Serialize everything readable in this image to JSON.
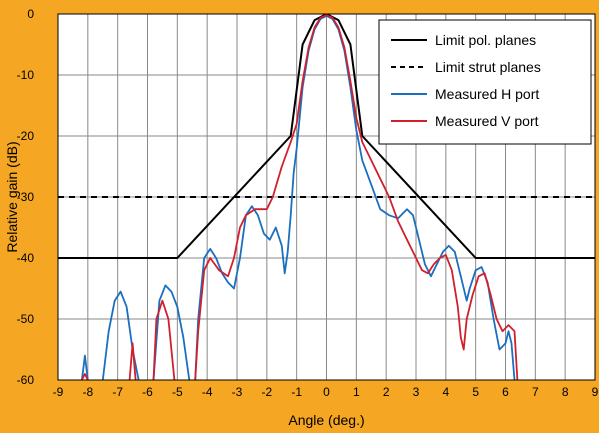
{
  "chart_data": {
    "type": "line",
    "xlabel": "Angle (deg.)",
    "ylabel": "Relative gain (dB)",
    "xlim": [
      -9,
      9
    ],
    "ylim": [
      -60,
      0
    ],
    "x_ticks": [
      -9,
      -8,
      -7,
      -6,
      -5,
      -4,
      -3,
      -2,
      -1,
      0,
      1,
      2,
      3,
      4,
      5,
      6,
      7,
      8,
      9
    ],
    "y_ticks": [
      0,
      -10,
      -20,
      -30,
      -40,
      -50,
      -60
    ],
    "grid": true,
    "legend_position": "top-right",
    "colors": {
      "background": "#f5a623",
      "plot_area": "#ffffff",
      "grid": "#8a8a8a",
      "limit": "#000000",
      "measured_h": "#1a6fbf",
      "measured_v": "#d0202e"
    },
    "series": [
      {
        "name": "Limit pol. planes",
        "style": "solid",
        "color": "#000000",
        "points": [
          [
            -9,
            -40
          ],
          [
            -5,
            -40
          ],
          [
            -1.2,
            -20
          ],
          [
            -0.8,
            -5
          ],
          [
            -0.4,
            -1
          ],
          [
            0,
            0
          ],
          [
            0.4,
            -1
          ],
          [
            0.8,
            -5
          ],
          [
            1.2,
            -20
          ],
          [
            5,
            -40
          ],
          [
            9,
            -40
          ]
        ]
      },
      {
        "name": "Limit strut planes",
        "style": "dashed",
        "color": "#000000",
        "points": [
          [
            -9,
            -30
          ],
          [
            9,
            -30
          ]
        ]
      },
      {
        "name": "Measured H port",
        "style": "solid",
        "color": "#1a6fbf",
        "segments": [
          [
            [
              -8.2,
              -60
            ],
            [
              -8.1,
              -56
            ],
            [
              -8.0,
              -60
            ]
          ],
          [
            [
              -7.5,
              -60
            ],
            [
              -7.3,
              -52
            ],
            [
              -7.1,
              -47
            ],
            [
              -6.9,
              -45.5
            ],
            [
              -6.7,
              -48
            ],
            [
              -6.5,
              -55
            ],
            [
              -6.3,
              -60
            ]
          ],
          [
            [
              -5.8,
              -60
            ],
            [
              -5.6,
              -47
            ],
            [
              -5.4,
              -44.5
            ],
            [
              -5.2,
              -45.5
            ],
            [
              -5.0,
              -48
            ],
            [
              -4.8,
              -53
            ],
            [
              -4.6,
              -60
            ]
          ],
          [
            [
              -4.4,
              -60
            ],
            [
              -4.3,
              -50
            ],
            [
              -4.1,
              -40
            ],
            [
              -3.9,
              -38.5
            ],
            [
              -3.7,
              -40
            ],
            [
              -3.5,
              -42.5
            ],
            [
              -3.3,
              -44
            ],
            [
              -3.1,
              -45
            ],
            [
              -2.9,
              -40
            ],
            [
              -2.7,
              -33
            ],
            [
              -2.5,
              -31.5
            ],
            [
              -2.3,
              -33
            ],
            [
              -2.1,
              -36
            ],
            [
              -1.9,
              -37
            ],
            [
              -1.7,
              -35
            ],
            [
              -1.5,
              -38
            ],
            [
              -1.4,
              -42.5
            ],
            [
              -1.3,
              -39
            ],
            [
              -1.2,
              -33
            ],
            [
              -1.1,
              -26
            ],
            [
              -1.0,
              -22
            ],
            [
              -0.8,
              -12
            ],
            [
              -0.6,
              -6
            ],
            [
              -0.4,
              -2.5
            ],
            [
              -0.2,
              -0.8
            ],
            [
              0,
              -0.3
            ],
            [
              0.2,
              -0.8
            ],
            [
              0.4,
              -2.5
            ],
            [
              0.6,
              -6
            ],
            [
              0.8,
              -12
            ],
            [
              1.0,
              -19
            ],
            [
              1.2,
              -24
            ],
            [
              1.5,
              -28
            ],
            [
              1.8,
              -32
            ],
            [
              2.1,
              -33
            ],
            [
              2.4,
              -33.5
            ],
            [
              2.7,
              -32
            ],
            [
              2.9,
              -33
            ],
            [
              3.1,
              -37
            ],
            [
              3.3,
              -41
            ],
            [
              3.5,
              -43
            ],
            [
              3.7,
              -41
            ],
            [
              3.9,
              -39
            ],
            [
              4.1,
              -38
            ],
            [
              4.3,
              -39
            ],
            [
              4.5,
              -43
            ],
            [
              4.7,
              -47
            ],
            [
              4.8,
              -45
            ],
            [
              5.0,
              -42
            ],
            [
              5.2,
              -41.5
            ],
            [
              5.4,
              -44
            ],
            [
              5.6,
              -50
            ],
            [
              5.8,
              -55
            ],
            [
              6.0,
              -54
            ],
            [
              6.1,
              -52
            ],
            [
              6.2,
              -54
            ],
            [
              6.3,
              -60
            ]
          ]
        ]
      },
      {
        "name": "Measured V port",
        "style": "solid",
        "color": "#d0202e",
        "segments": [
          [
            [
              -8.2,
              -60
            ],
            [
              -8.1,
              -59
            ],
            [
              -8.0,
              -60
            ]
          ],
          [
            [
              -6.6,
              -60
            ],
            [
              -6.5,
              -54
            ],
            [
              -6.4,
              -60
            ]
          ],
          [
            [
              -5.8,
              -60
            ],
            [
              -5.7,
              -50
            ],
            [
              -5.5,
              -47
            ],
            [
              -5.3,
              -50
            ],
            [
              -5.1,
              -60
            ]
          ],
          [
            [
              -4.4,
              -60
            ],
            [
              -4.3,
              -52
            ],
            [
              -4.1,
              -42
            ],
            [
              -3.9,
              -40
            ],
            [
              -3.6,
              -42
            ],
            [
              -3.3,
              -43
            ],
            [
              -3.1,
              -40
            ],
            [
              -2.9,
              -35
            ],
            [
              -2.7,
              -33
            ],
            [
              -2.4,
              -32
            ],
            [
              -2.0,
              -32
            ],
            [
              -1.8,
              -30
            ],
            [
              -1.5,
              -25
            ],
            [
              -1.2,
              -21
            ],
            [
              -1.0,
              -18
            ],
            [
              -0.8,
              -11
            ],
            [
              -0.6,
              -5.5
            ],
            [
              -0.4,
              -2.2
            ],
            [
              -0.2,
              -0.6
            ],
            [
              0,
              -0.2
            ],
            [
              0.2,
              -0.6
            ],
            [
              0.4,
              -2.2
            ],
            [
              0.6,
              -5.5
            ],
            [
              0.8,
              -11
            ],
            [
              1.0,
              -17
            ],
            [
              1.2,
              -21
            ],
            [
              1.5,
              -24
            ],
            [
              1.8,
              -27
            ],
            [
              2.1,
              -30
            ],
            [
              2.4,
              -34
            ],
            [
              2.7,
              -37
            ],
            [
              3.0,
              -40
            ],
            [
              3.2,
              -42
            ],
            [
              3.4,
              -42.5
            ],
            [
              3.6,
              -41
            ],
            [
              3.8,
              -40
            ],
            [
              4.0,
              -39.5
            ],
            [
              4.2,
              -42
            ],
            [
              4.4,
              -48
            ],
            [
              4.5,
              -53
            ],
            [
              4.6,
              -55
            ],
            [
              4.7,
              -50
            ],
            [
              4.9,
              -46
            ],
            [
              5.1,
              -43
            ],
            [
              5.3,
              -42.5
            ],
            [
              5.5,
              -46
            ],
            [
              5.7,
              -50
            ],
            [
              5.9,
              -52
            ],
            [
              6.1,
              -51
            ],
            [
              6.3,
              -52
            ],
            [
              6.4,
              -60
            ]
          ]
        ]
      }
    ]
  }
}
